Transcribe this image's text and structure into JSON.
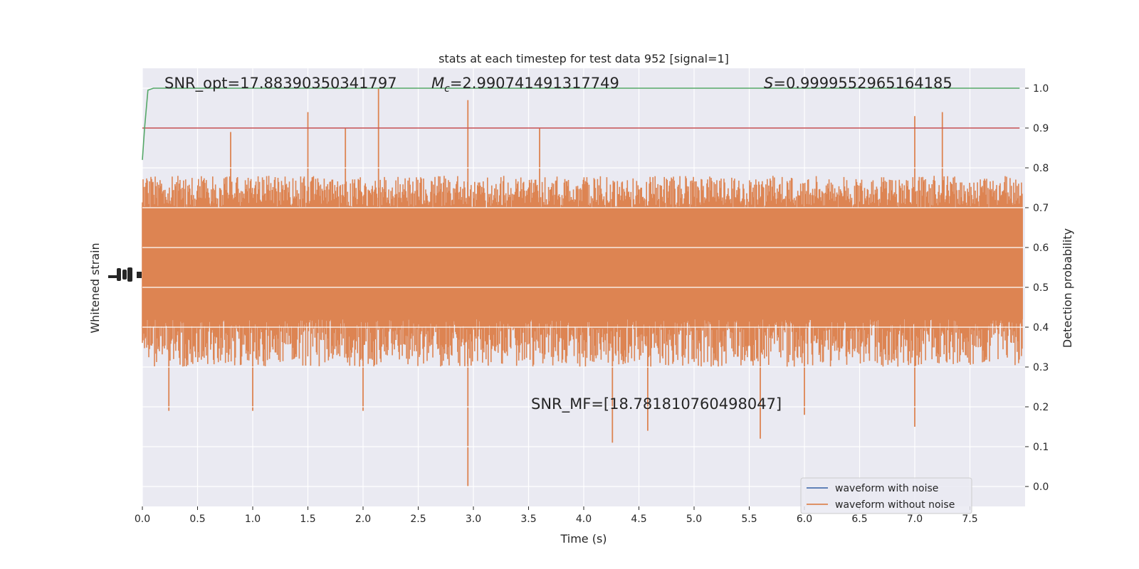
{
  "chart_data": {
    "type": "line",
    "title": "stats at each timestep for test data 952 [signal=1]",
    "xlabel": "Time (s)",
    "ylabel_left": "Whitened strain",
    "ylabel_right": "Detection probability",
    "xlim": [
      0.0,
      8.0
    ],
    "ylim_right": [
      -0.05,
      1.05
    ],
    "x_ticks": [
      "0.0",
      "0.5",
      "1.0",
      "1.5",
      "2.0",
      "2.5",
      "3.0",
      "3.5",
      "4.0",
      "4.5",
      "5.0",
      "5.5",
      "6.0",
      "6.5",
      "7.0",
      "7.5"
    ],
    "y_ticks_right": [
      "0.0",
      "0.1",
      "0.2",
      "0.3",
      "0.4",
      "0.5",
      "0.6",
      "0.7",
      "0.8",
      "0.9",
      "1.0"
    ],
    "grid": true,
    "legend_position": "lower right",
    "series": [
      {
        "name": "waveform with noise",
        "color": "#4c72b0"
      },
      {
        "name": "waveform without noise",
        "color": "#dd8452"
      }
    ],
    "threshold": {
      "value": 0.9,
      "color": "#c44e52"
    },
    "detection_probability": {
      "color": "#55a868",
      "x": [
        0.0,
        0.02,
        0.05,
        0.1,
        7.95
      ],
      "y": [
        0.82,
        0.9,
        0.995,
        1.0,
        1.0
      ]
    },
    "noise_band": {
      "low": 0.3,
      "high": 0.78,
      "core_low": 0.42,
      "core_high": 0.7
    },
    "spikes": [
      {
        "x": 0.24,
        "y": 0.19
      },
      {
        "x": 0.8,
        "y": 0.89
      },
      {
        "x": 1.0,
        "y": 0.19
      },
      {
        "x": 1.5,
        "y": 0.94
      },
      {
        "x": 1.84,
        "y": 0.9
      },
      {
        "x": 2.14,
        "y": 1.0
      },
      {
        "x": 2.0,
        "y": 0.19
      },
      {
        "x": 2.95,
        "y": 0.97
      },
      {
        "x": 2.95,
        "y": 0.0
      },
      {
        "x": 3.6,
        "y": 0.9
      },
      {
        "x": 4.26,
        "y": 0.11
      },
      {
        "x": 4.58,
        "y": 0.14
      },
      {
        "x": 5.6,
        "y": 0.12
      },
      {
        "x": 6.0,
        "y": 0.18
      },
      {
        "x": 7.0,
        "y": 0.93
      },
      {
        "x": 7.0,
        "y": 0.15
      },
      {
        "x": 7.25,
        "y": 0.94
      }
    ]
  },
  "annotations": {
    "snr_opt": "SNR_opt=17.88390350341797",
    "mc_symbol": "M",
    "mc_sub": "c",
    "mc_value": "=2.990741491317749",
    "s_symbol": "S",
    "s_value": "=0.9999552965164185",
    "snr_mf": "SNR_MF=[18.781810760498047]"
  },
  "colors": {
    "plot_background": "#eaeaf2",
    "grid": "#ffffff",
    "text": "#262626"
  }
}
